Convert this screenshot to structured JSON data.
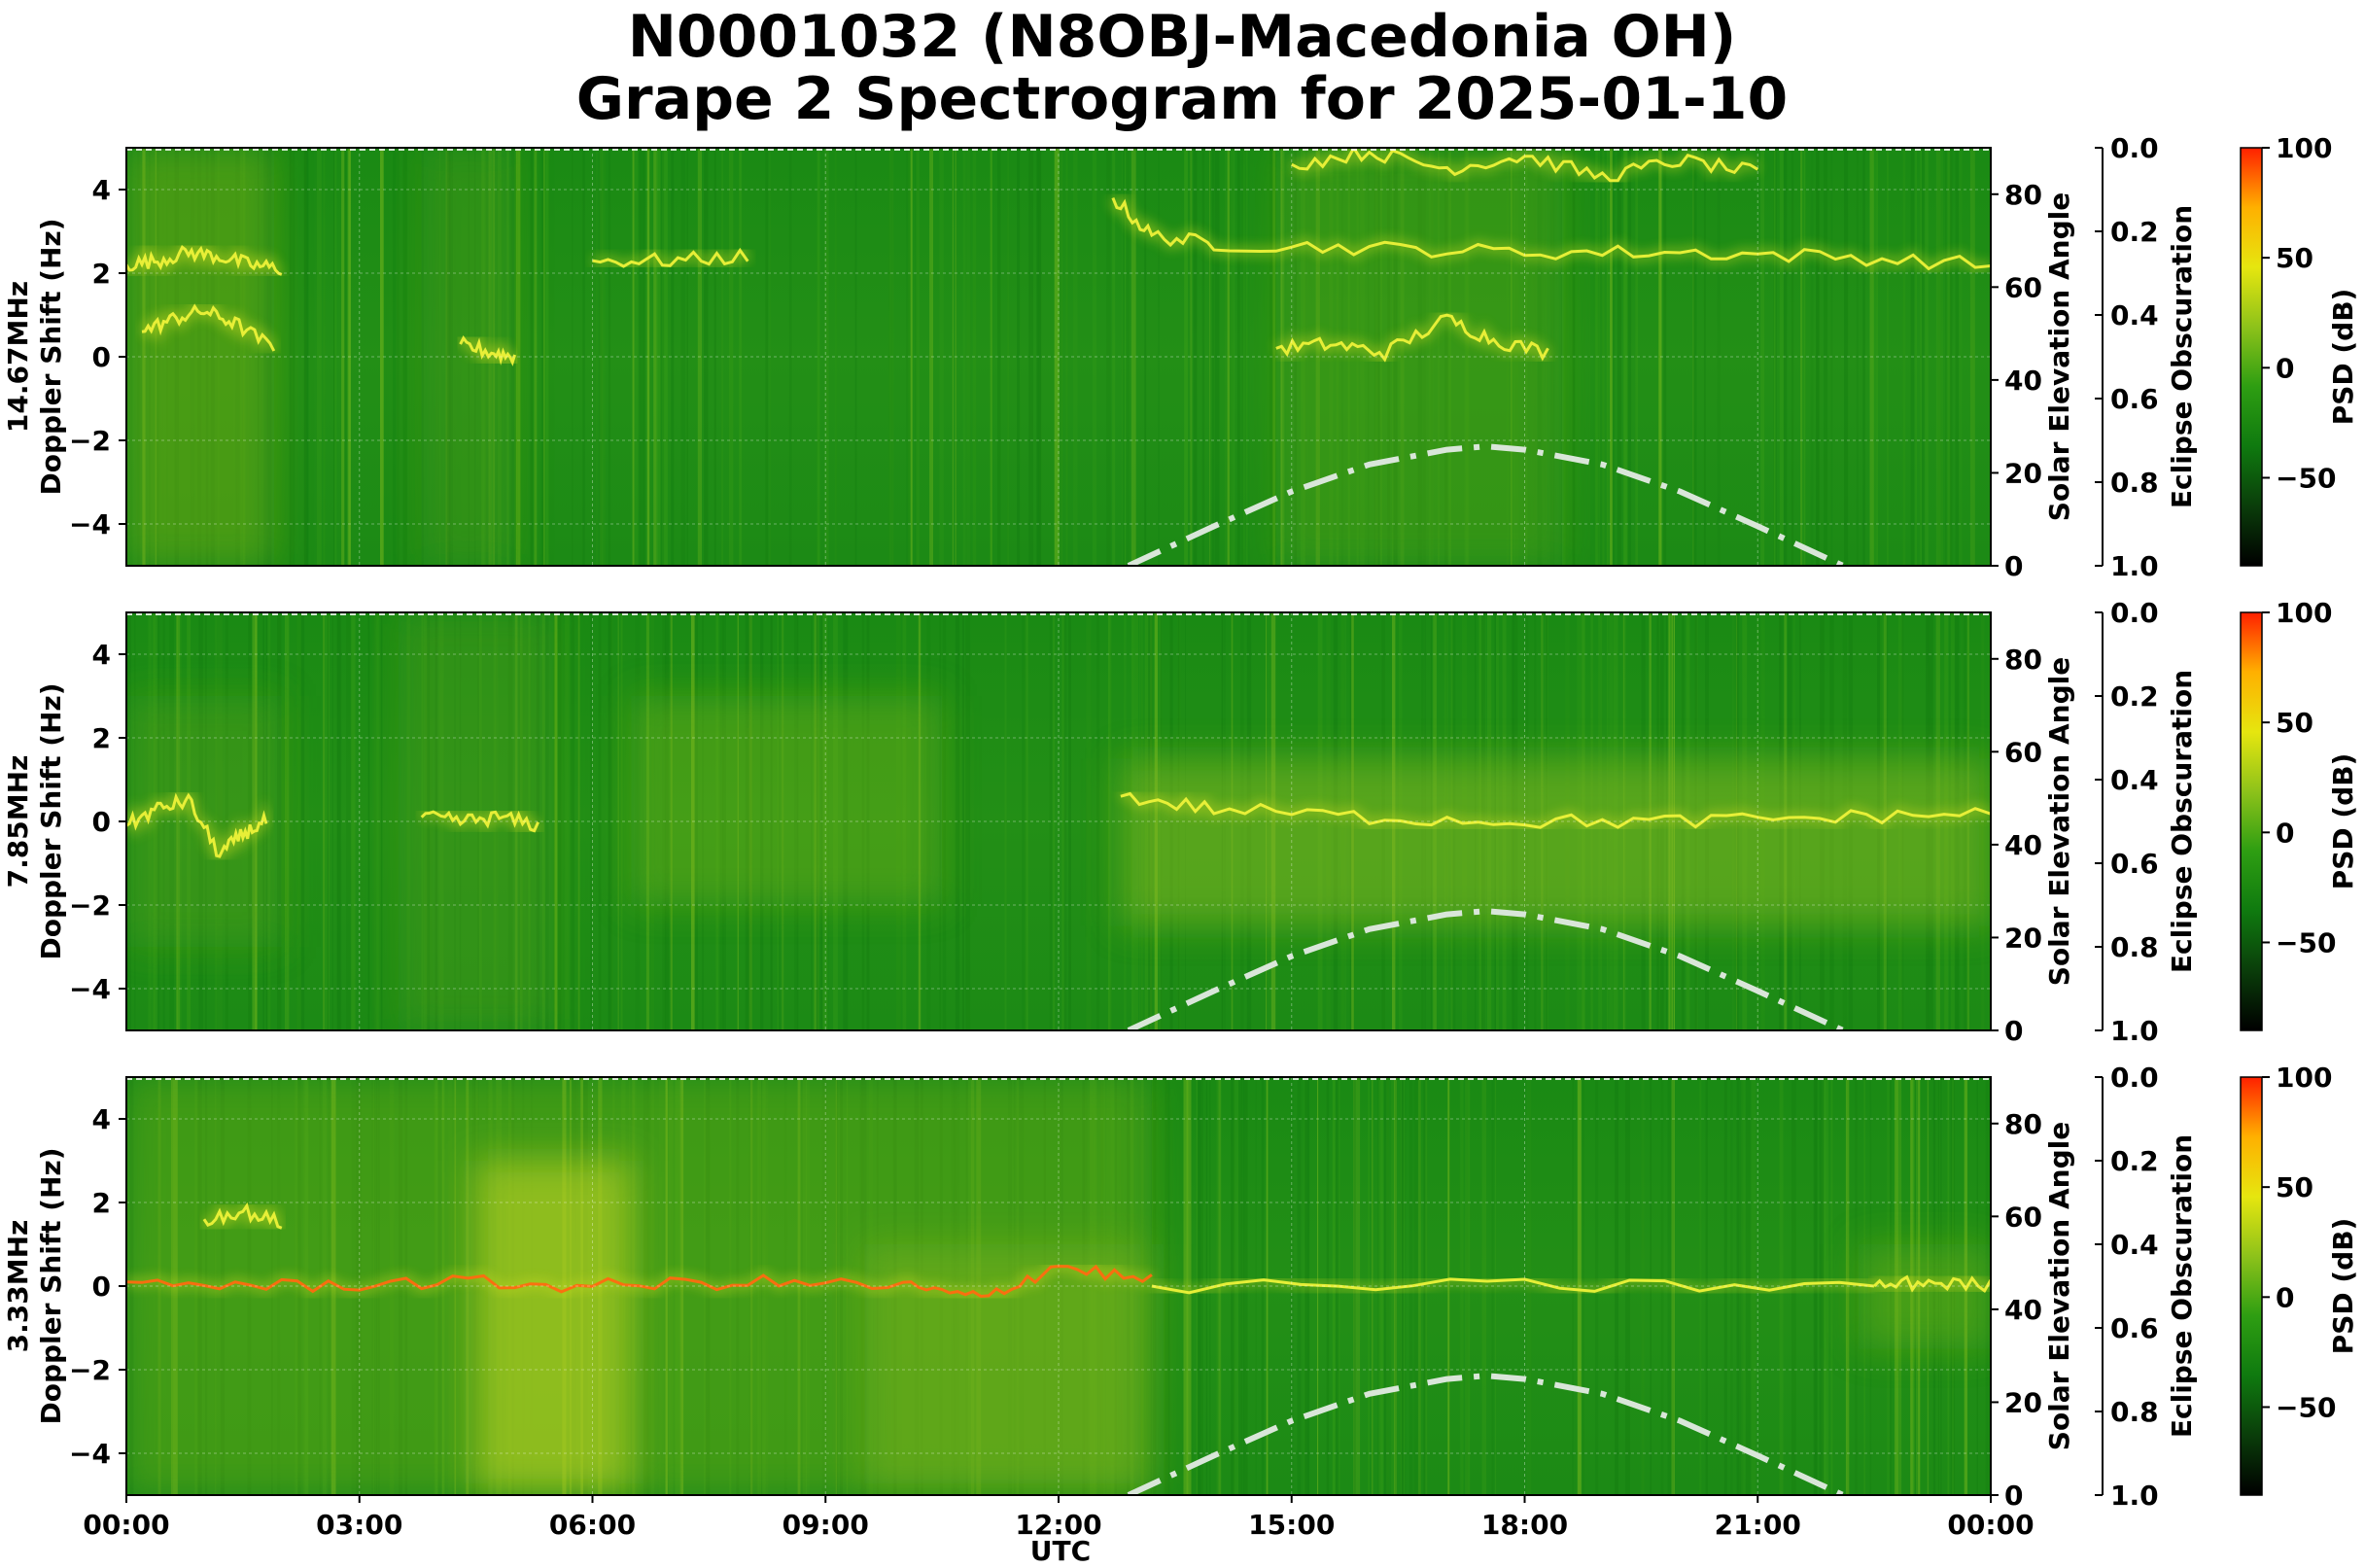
{
  "chart_data": {
    "type": "heatmap",
    "title": "N0001032 (N8OBJ-Macedonia OH)",
    "subtitle": "Grape 2 Spectrogram for 2025-01-10",
    "xlabel": "UTC",
    "x_ticks": [
      "00:00",
      "03:00",
      "06:00",
      "09:00",
      "12:00",
      "15:00",
      "18:00",
      "21:00",
      "00:00"
    ],
    "x_range_hours": [
      0,
      24
    ],
    "y_range_hz": [
      -5,
      5
    ],
    "y_ticks": [
      "4",
      "2",
      "0",
      "−2",
      "−4"
    ],
    "y_tick_values": [
      4,
      2,
      0,
      -2,
      -4
    ],
    "ylabel": "Doppler Shift (Hz)",
    "right_axis": {
      "label": "Solar Elevation Angle",
      "range": [
        0,
        90
      ],
      "ticks": [
        "80",
        "60",
        "40",
        "20",
        "0"
      ],
      "tick_values": [
        80,
        60,
        40,
        20,
        0
      ]
    },
    "eclipse_axis": {
      "label": "Eclipse Obscuration",
      "range": [
        0.0,
        1.0
      ],
      "ticks": [
        "0.0",
        "0.2",
        "0.4",
        "0.6",
        "0.8",
        "1.0"
      ],
      "tick_values": [
        0.0,
        0.2,
        0.4,
        0.6,
        0.8,
        1.0
      ],
      "inverted": true
    },
    "colorbar": {
      "label": "PSD (dB)",
      "range": [
        -90,
        100
      ],
      "ticks": [
        "100",
        "50",
        "0",
        "−50"
      ],
      "tick_values": [
        100,
        50,
        0,
        -50
      ],
      "colors": [
        "#000000",
        "#0a3d0a",
        "#0f7a0f",
        "#2e9e12",
        "#8dc21a",
        "#e6e60f",
        "#ffb000",
        "#ff2000"
      ]
    },
    "solar_elevation_curve": {
      "style": "dash-dot",
      "color": "#d9e6d9",
      "hours": [
        12.9,
        14,
        15,
        16,
        17,
        17.5,
        18,
        19,
        20,
        21,
        22.1
      ],
      "degrees": [
        0,
        8.5,
        16,
        21.8,
        25,
        25.7,
        25,
        21.8,
        16,
        8.5,
        0
      ]
    },
    "panels": [
      {
        "label": "14.67MHz",
        "carrier_traces": [
          {
            "hours": [
              0,
              0.4,
              0.8,
              1.2,
              1.6,
              2.0
            ],
            "hz": [
              2.2,
              2.3,
              2.5,
              2.4,
              2.2,
              2.1
            ]
          },
          {
            "hours": [
              0.2,
              0.6,
              1.0,
              1.4,
              1.9
            ],
            "hz": [
              0.6,
              0.9,
              1.1,
              0.8,
              0.2
            ]
          },
          {
            "hours": [
              12.7,
              13.2,
              14,
              16,
              18,
              20,
              22,
              24
            ],
            "hz": [
              3.8,
              2.9,
              2.7,
              2.6,
              2.5,
              2.5,
              2.4,
              2.2
            ]
          },
          {
            "hours": [
              14.8,
              15.5,
              16.2,
              17,
              17.6,
              18.3
            ],
            "hz": [
              0.2,
              0.3,
              0.1,
              0.9,
              0.4,
              0.1
            ]
          },
          {
            "hours": [
              15,
              16,
              17,
              18,
              19,
              20,
              21
            ],
            "hz": [
              4.6,
              4.9,
              4.5,
              4.8,
              4.3,
              4.7,
              4.4
            ]
          },
          {
            "hours": [
              4.3,
              4.7,
              5.0
            ],
            "hz": [
              0.3,
              0.1,
              0.0
            ]
          },
          {
            "hours": [
              6.0,
              7.0,
              8.0
            ],
            "hz": [
              2.3,
              2.3,
              2.4
            ]
          }
        ]
      },
      {
        "label": "7.85MHz",
        "carrier_traces": [
          {
            "hours": [
              0,
              0.4,
              0.8,
              1.2,
              1.5,
              1.8
            ],
            "hz": [
              -0.1,
              0.3,
              0.5,
              -0.8,
              -0.3,
              0.0
            ]
          },
          {
            "hours": [
              3.8,
              4.3,
              4.8,
              5.3
            ],
            "hz": [
              0.1,
              0.0,
              0.1,
              -0.1
            ]
          },
          {
            "hours": [
              12.8,
              14,
              16,
              18,
              20,
              22,
              24
            ],
            "hz": [
              0.6,
              0.3,
              0.1,
              0.0,
              0.0,
              0.1,
              0.2
            ]
          }
        ]
      },
      {
        "label": "3.33MHz",
        "carrier_traces": [
          {
            "hours": [
              0,
              2,
              4,
              6,
              8,
              10,
              11,
              12,
              13.2
            ],
            "hz": [
              0.1,
              0.0,
              0.1,
              0.0,
              0.1,
              0.0,
              -0.3,
              0.5,
              0.1
            ]
          },
          {
            "hours": [
              13.2,
              18,
              22.5
            ],
            "hz": [
              0.0,
              0.0,
              0.0
            ]
          },
          {
            "hours": [
              22.5,
              23.2,
              24
            ],
            "hz": [
              0.0,
              0.1,
              0.0
            ]
          },
          {
            "hours": [
              1.0,
              1.5,
              2.0
            ],
            "hz": [
              1.6,
              1.8,
              1.5
            ]
          }
        ]
      }
    ]
  }
}
